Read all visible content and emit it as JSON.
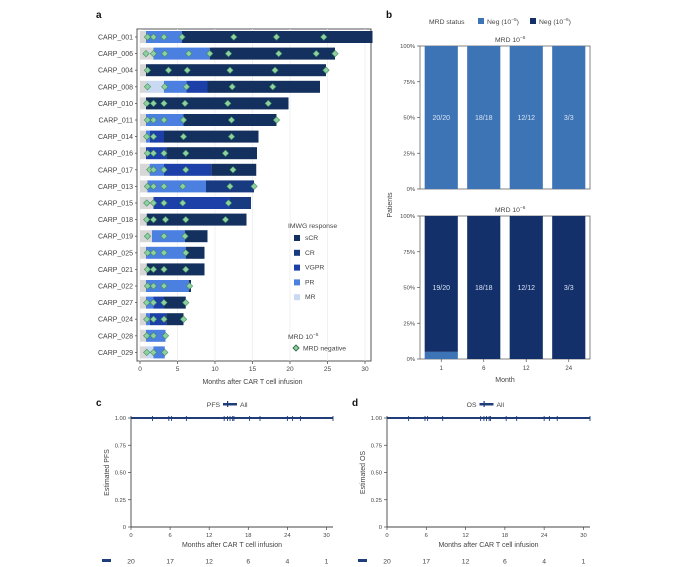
{
  "chart_data": [
    {
      "id": "a",
      "type": "bar",
      "orientation": "horizontal-swimmer",
      "panel_label": "a",
      "xlabel": "Months after CAR T cell infusion",
      "xlim": [
        0,
        31
      ],
      "xticks": [
        0,
        5,
        10,
        15,
        20,
        25,
        30
      ],
      "legend": {
        "title": "IMWG response",
        "placement": "right",
        "items": [
          {
            "name": "sCR",
            "color": "#13305e"
          },
          {
            "name": "CR",
            "color": "#173a80"
          },
          {
            "name": "VGPR",
            "color": "#1c3fa8"
          },
          {
            "name": "PR",
            "color": "#4b7fe0"
          },
          {
            "name": "MR",
            "color": "#c9d9f2"
          }
        ],
        "marker_title": "MRD 10",
        "marker_title_sup": "−5",
        "marker_label": "MRD negative",
        "baseline_color": "#d7d7d7"
      },
      "patients": [
        {
          "id": "CARP_001",
          "segments": [
            [
              "base",
              0,
              0.8
            ],
            [
              "PR",
              0.8,
              5.6
            ],
            [
              "sCR",
              5.6,
              31
            ]
          ],
          "mrd": [
            1.0,
            1.8,
            3.2,
            5.6,
            12.5,
            18.2,
            24.5
          ]
        },
        {
          "id": "CARP_006",
          "segments": [
            [
              "base",
              0,
              1.8
            ],
            [
              "PR",
              1.8,
              9.3
            ],
            [
              "sCR",
              9.3,
              26
            ]
          ],
          "mrd": [
            0.8,
            1.8,
            3.3,
            6.5,
            9.3,
            11.8,
            18.5,
            23.5,
            26
          ]
        },
        {
          "id": "CARP_004",
          "segments": [
            [
              "base",
              0,
              0.8
            ],
            [
              "sCR",
              0.8,
              24.8
            ]
          ],
          "mrd": [
            1.0,
            3.8,
            6.3,
            12.0,
            18.0,
            24.8
          ]
        },
        {
          "id": "CARP_008",
          "segments": [
            [
              "base",
              0,
              0.8
            ],
            [
              "MR",
              0.8,
              3.2
            ],
            [
              "PR",
              3.2,
              6.2
            ],
            [
              "VGPR",
              6.2,
              9.0
            ],
            [
              "sCR",
              9.0,
              24
            ]
          ],
          "mrd": [
            1.0,
            3.3,
            6.2,
            12.3,
            17.7
          ]
        },
        {
          "id": "CARP_010",
          "segments": [
            [
              "base",
              0,
              0.8
            ],
            [
              "sCR",
              0.8,
              19.8
            ]
          ],
          "mrd": [
            0.9,
            1.8,
            3.2,
            6.0,
            11.7,
            17.1
          ]
        },
        {
          "id": "CARP_011",
          "segments": [
            [
              "base",
              0,
              0.8
            ],
            [
              "PR",
              0.8,
              5.8
            ],
            [
              "sCR",
              5.8,
              18.2
            ]
          ],
          "mrd": [
            1.0,
            1.8,
            3.2,
            5.8,
            12.2,
            18.2
          ]
        },
        {
          "id": "CARP_014",
          "segments": [
            [
              "base",
              0,
              0.8
            ],
            [
              "PR",
              0.8,
              1.3
            ],
            [
              "VGPR",
              1.3,
              3.2
            ],
            [
              "sCR",
              3.2,
              15.8
            ]
          ],
          "mrd": [
            0.9,
            1.8,
            5.8,
            12.2
          ]
        },
        {
          "id": "CARP_016",
          "segments": [
            [
              "base",
              0,
              0.8
            ],
            [
              "VGPR",
              0.8,
              3.5
            ],
            [
              "sCR",
              3.5,
              15.6
            ]
          ],
          "mrd": [
            1.0,
            1.8,
            3.2,
            6.1,
            11.4
          ]
        },
        {
          "id": "CARP_017",
          "segments": [
            [
              "base",
              0,
              1.3
            ],
            [
              "PR",
              1.3,
              3.2
            ],
            [
              "VGPR",
              3.2,
              9.5
            ],
            [
              "sCR",
              9.5,
              15.5
            ]
          ],
          "mrd": [
            1.3,
            1.8,
            3.2,
            6.1,
            12.4
          ]
        },
        {
          "id": "CARP_013",
          "segments": [
            [
              "base",
              0,
              1.0
            ],
            [
              "PR",
              1.0,
              8.8
            ],
            [
              "CR",
              8.8,
              15.2
            ]
          ],
          "mrd": [
            1.0,
            1.8,
            3.2,
            5.7,
            12.0,
            15.2
          ]
        },
        {
          "id": "CARP_015",
          "segments": [
            [
              "base",
              0,
              1.8
            ],
            [
              "VGPR",
              1.8,
              12.0
            ],
            [
              "CR",
              12.0,
              14.8
            ]
          ],
          "mrd": [
            0.9,
            1.8,
            3.2,
            5.7,
            11.8
          ]
        },
        {
          "id": "CARP_018",
          "segments": [
            [
              "base",
              0,
              0.9
            ],
            [
              "sCR",
              0.9,
              14.2
            ]
          ],
          "mrd": [
            0.9,
            1.8,
            3.4,
            6.1,
            11.4
          ]
        },
        {
          "id": "CARP_019",
          "segments": [
            [
              "base",
              0,
              1.6
            ],
            [
              "PR",
              1.6,
              6.0
            ],
            [
              "sCR",
              6.0,
              9.0
            ]
          ],
          "mrd": [
            1.0,
            3.2,
            6.0
          ]
        },
        {
          "id": "CARP_025",
          "segments": [
            [
              "base",
              0,
              0.8
            ],
            [
              "PR",
              0.8,
              6.1
            ],
            [
              "sCR",
              6.1,
              8.6
            ]
          ],
          "mrd": [
            1.0,
            1.8,
            3.2,
            6.1
          ]
        },
        {
          "id": "CARP_021",
          "segments": [
            [
              "base",
              0,
              0.9
            ],
            [
              "sCR",
              0.9,
              8.6
            ]
          ],
          "mrd": [
            1.0,
            1.8,
            3.2,
            6.1
          ]
        },
        {
          "id": "CARP_022",
          "segments": [
            [
              "base",
              0,
              0.8
            ],
            [
              "PR",
              0.8,
              6.5
            ],
            [
              "sCR",
              6.5,
              6.8
            ]
          ],
          "mrd": [
            1.0,
            1.8,
            3.2,
            6.6
          ]
        },
        {
          "id": "CARP_027",
          "segments": [
            [
              "base",
              0,
              0.8
            ],
            [
              "PR",
              0.8,
              1.8
            ],
            [
              "VGPR",
              1.8,
              3.2
            ],
            [
              "sCR",
              3.2,
              6.1
            ]
          ],
          "mrd": [
            0.9,
            1.8,
            3.2,
            6.1
          ]
        },
        {
          "id": "CARP_024",
          "segments": [
            [
              "base",
              0,
              0.8
            ],
            [
              "PR",
              0.8,
              1.3
            ],
            [
              "VGPR",
              1.3,
              3.5
            ],
            [
              "sCR",
              3.5,
              5.8
            ]
          ],
          "mrd": [
            0.9,
            1.8,
            3.2,
            5.8
          ]
        },
        {
          "id": "CARP_028",
          "segments": [
            [
              "base",
              0,
              0.8
            ],
            [
              "PR",
              0.8,
              3.4
            ]
          ],
          "mrd": [
            0.9,
            1.8,
            3.4
          ]
        },
        {
          "id": "CARP_029",
          "segments": [
            [
              "base",
              0,
              0.8
            ],
            [
              "MR",
              0.8,
              1.8
            ],
            [
              "PR",
              1.8,
              3.3
            ]
          ],
          "mrd": [
            0.9,
            1.8,
            3.3
          ]
        }
      ]
    },
    {
      "id": "b",
      "type": "bar",
      "stacked": true,
      "panel_label": "b",
      "legend": {
        "title": "MRD status",
        "placement": "top",
        "items": [
          {
            "name": "Neg (10",
            "sup": "−5",
            "close": ")",
            "color": "#3d74b5"
          },
          {
            "name": "Neg (10",
            "sup": "−6",
            "close": ")",
            "color": "#14306b"
          }
        ]
      },
      "ylabel": "Patients",
      "xlabel": "Month",
      "categories": [
        "1",
        "6",
        "12",
        "24"
      ],
      "yticks": [
        "0%",
        "25%",
        "50%",
        "75%",
        "100%"
      ],
      "ylim": [
        0,
        100
      ],
      "facets": [
        {
          "title": "MRD 10",
          "sup": "−5",
          "series": [
            {
              "name": "Neg (10^-5)",
              "color": "#3d74b5",
              "values": [
                100,
                100,
                100,
                100
              ]
            }
          ],
          "labels": [
            "20/20",
            "18/18",
            "12/12",
            "3/3"
          ]
        },
        {
          "title": "MRD 10",
          "sup": "−6",
          "series": [
            {
              "name": "Neg (10^-5) only",
              "color": "#3d74b5",
              "values": [
                5,
                0,
                0,
                0
              ]
            },
            {
              "name": "Neg (10^-6)",
              "color": "#14306b",
              "values": [
                95,
                100,
                100,
                100
              ]
            }
          ],
          "labels": [
            "19/20",
            "18/18",
            "12/12",
            "3/3"
          ]
        }
      ]
    },
    {
      "id": "c",
      "type": "line",
      "panel_label": "c",
      "title": "PFS",
      "legend": {
        "label": "All",
        "placement": "top",
        "color": "#1f3d7a"
      },
      "xlabel": "Months after CAR T cell infusion",
      "ylabel": "Estimated PFS",
      "xlim": [
        0,
        31
      ],
      "ylim": [
        0,
        1
      ],
      "xticks": [
        "0",
        "6",
        "12",
        "18",
        "24",
        "30"
      ],
      "yticks": [
        "0",
        "0.25",
        "0.50",
        "0.75",
        "1.00"
      ],
      "series": [
        {
          "name": "All",
          "x": [
            0,
            31
          ],
          "y": [
            1.0,
            1.0
          ]
        }
      ],
      "censor_times": [
        3.3,
        5.8,
        6.2,
        8.5,
        14.3,
        14.8,
        15.2,
        15.6,
        15.8,
        18.2,
        19.8,
        24.0,
        24.8,
        26.0,
        31.0
      ],
      "risk_table": {
        "times": [
          0,
          6,
          12,
          18,
          24,
          30
        ],
        "at_risk": [
          "20",
          "17",
          "12",
          "6",
          "4",
          "1"
        ]
      }
    },
    {
      "id": "d",
      "type": "line",
      "panel_label": "d",
      "title": "OS",
      "legend": {
        "label": "All",
        "placement": "top",
        "color": "#1f3d7a"
      },
      "xlabel": "Months after CAR T cell infusion",
      "ylabel": "Estimated OS",
      "xlim": [
        0,
        31
      ],
      "ylim": [
        0,
        1
      ],
      "xticks": [
        "0",
        "6",
        "12",
        "18",
        "24",
        "30"
      ],
      "yticks": [
        "0",
        "0.25",
        "0.50",
        "0.75",
        "1.00"
      ],
      "series": [
        {
          "name": "All",
          "x": [
            0,
            31
          ],
          "y": [
            1.0,
            1.0
          ]
        }
      ],
      "censor_times": [
        3.3,
        5.8,
        6.2,
        8.5,
        14.3,
        14.8,
        15.2,
        15.6,
        15.8,
        18.2,
        19.8,
        24.0,
        24.8,
        26.0,
        31.0
      ],
      "risk_table": {
        "times": [
          0,
          6,
          12,
          18,
          24,
          30
        ],
        "at_risk": [
          "20",
          "17",
          "12",
          "6",
          "4",
          "1"
        ]
      }
    }
  ]
}
